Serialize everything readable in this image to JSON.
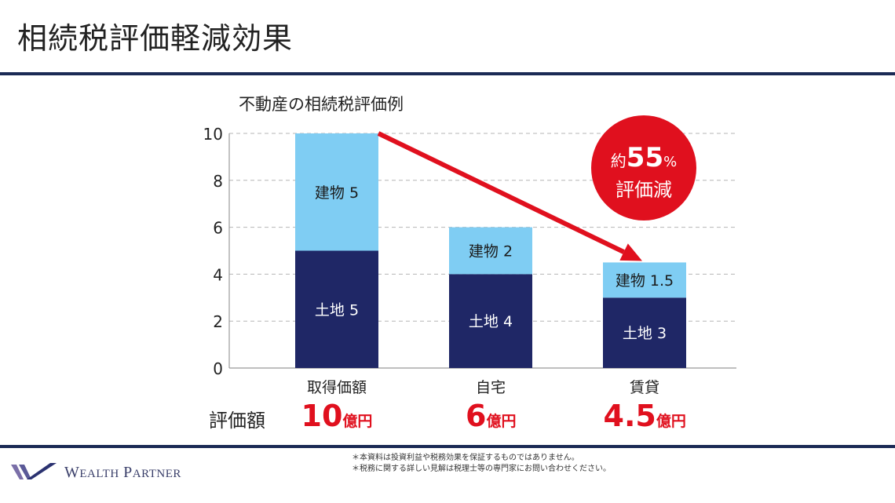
{
  "page": {
    "title": "相続税評価軽減効果",
    "row_label": "評価額",
    "notes": [
      "＊本資料は投資利益や税務効果を保証するものではありません。",
      "＊税務に関する詳しい見解は税理士等の専門家にお問い合わせください。"
    ],
    "logo": {
      "text_w": "W",
      "text_ealth": "EALTH",
      "text_p": "P",
      "text_artner": "ARTNER",
      "full": "WEALTH PARTNER"
    },
    "badge": {
      "prefix": "約",
      "number": "55",
      "suffix": "%",
      "line2": "評価減"
    }
  },
  "colors": {
    "land": "#1f2766",
    "building": "#7fcdf3",
    "accent": "#e0101e",
    "navy": "#1b2a55"
  },
  "chart_data": {
    "type": "bar",
    "stacked": true,
    "title": "不動産の相続税評価例",
    "categories": [
      "取得価額",
      "自宅",
      "賃貸"
    ],
    "series": [
      {
        "name": "土地",
        "values": [
          5,
          4,
          3
        ],
        "labels": [
          "土地 5",
          "土地 4",
          "土地 3"
        ]
      },
      {
        "name": "建物",
        "values": [
          5,
          2,
          1.5
        ],
        "labels": [
          "建物 5",
          "建物 2",
          "建物 1.5"
        ]
      }
    ],
    "totals": [
      {
        "num": "10",
        "unit": "億円"
      },
      {
        "num": "6",
        "unit": "億円"
      },
      {
        "num": "4.5",
        "unit": "億円"
      }
    ],
    "ylim": [
      0,
      10
    ],
    "yticks": [
      "0",
      "2",
      "4",
      "6",
      "8",
      "10"
    ],
    "grid": true
  }
}
